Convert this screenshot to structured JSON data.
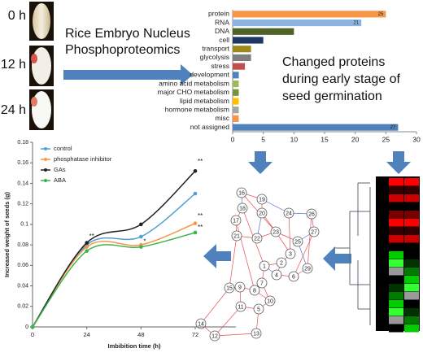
{
  "labels": {
    "times": [
      "0 h",
      "12 h",
      "24 h"
    ],
    "method": [
      "Rice Embryo Nucleus",
      "Phosphoproteomics"
    ],
    "summary": [
      "Changed proteins",
      "during early stage of",
      "seed germination"
    ]
  },
  "network": {
    "nodes": [
      "16",
      "19",
      "18",
      "20",
      "17",
      "22",
      "21",
      "24",
      "26",
      "23",
      "25",
      "27",
      "29",
      "1",
      "2",
      "3",
      "4",
      "6",
      "7",
      "8",
      "9",
      "10",
      "11",
      "15",
      "5",
      "12",
      "13",
      "14"
    ]
  },
  "chart_data": [
    {
      "type": "bar",
      "orientation": "horizontal",
      "categories": [
        "protein",
        "RNA",
        "DNA",
        "cell",
        "transport",
        "glycolysis",
        "stress",
        "development",
        "amino acid metabolism",
        "major CHO metabolism",
        "lipid metabolism",
        "hormone metabolism",
        "misc",
        "not assigned"
      ],
      "values": [
        25,
        21,
        10,
        5,
        3,
        3,
        2,
        1,
        1,
        1,
        1,
        1,
        1,
        27
      ],
      "value_labels": [
        "25",
        "21",
        null,
        null,
        null,
        null,
        null,
        null,
        null,
        null,
        null,
        null,
        null,
        "27"
      ],
      "colors": [
        "#f79646",
        "#8db3e2",
        "#4f6228",
        "#1f3864",
        "#9c8a1e",
        "#7f7f7f",
        "#c0504d",
        "#4f81bd",
        "#9bbb59",
        "#77933c",
        "#ffc000",
        "#a6a6a6",
        "#f79646",
        "#4f81bd"
      ],
      "xlim": [
        0,
        30
      ],
      "xticks": [
        0,
        5,
        10,
        15,
        20,
        25,
        30
      ]
    },
    {
      "type": "line",
      "xlabel": "Imbibition time (h)",
      "ylabel": "Increased weight of seeds (g)",
      "x": [
        0,
        24,
        48,
        72
      ],
      "series": [
        {
          "name": "control",
          "color": "#4f9fd5",
          "values": [
            0,
            0.08,
            0.088,
            0.13
          ]
        },
        {
          "name": "phosphatase inhibitor",
          "color": "#f79646",
          "values": [
            0,
            0.078,
            0.08,
            0.101
          ]
        },
        {
          "name": "GAs",
          "color": "#222222",
          "values": [
            0,
            0.082,
            0.1,
            0.152
          ]
        },
        {
          "name": "ABA",
          "color": "#3cb44b",
          "values": [
            0,
            0.074,
            0.078,
            0.092
          ]
        }
      ],
      "annotations": [
        {
          "text": "**",
          "x": 24,
          "y": 0.088
        },
        {
          "text": "*",
          "x": 48,
          "y": 0.083
        },
        {
          "text": "**",
          "x": 72,
          "y": 0.161
        },
        {
          "text": "**",
          "x": 72,
          "y": 0.108
        },
        {
          "text": "**",
          "x": 72,
          "y": 0.097
        }
      ],
      "xlim": [
        0,
        90
      ],
      "ylim": [
        0,
        0.18
      ],
      "xticks": [
        0,
        24,
        48,
        72
      ],
      "yticks": [
        0,
        0.02,
        0.04,
        0.06,
        0.08,
        0.1,
        0.12,
        0.14,
        0.16,
        0.18
      ],
      "legend": "upper left"
    }
  ]
}
